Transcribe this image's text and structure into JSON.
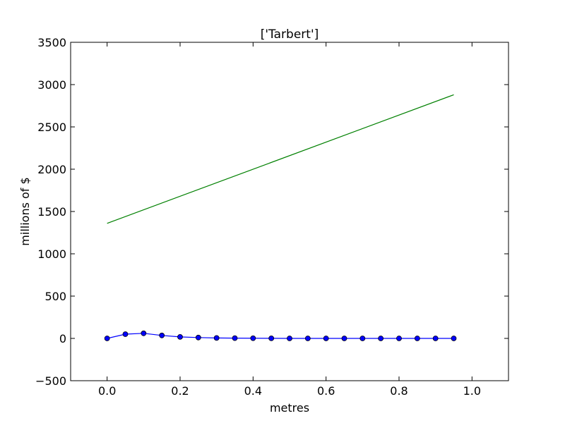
{
  "chart_data": {
    "type": "line",
    "title": "['Tarbert']",
    "xlabel": "metres",
    "ylabel": "millions of $",
    "xlim": [
      -0.1,
      1.1
    ],
    "ylim": [
      -500,
      3500
    ],
    "xticks": [
      0.0,
      0.2,
      0.4,
      0.6,
      0.8,
      1.0
    ],
    "xtick_labels": [
      "0.0",
      "0.2",
      "0.4",
      "0.6",
      "0.8",
      "1.0"
    ],
    "yticks": [
      -500,
      0,
      500,
      1000,
      1500,
      2000,
      2500,
      3000,
      3500
    ],
    "ytick_labels": [
      "−500",
      "0",
      "500",
      "1000",
      "1500",
      "2000",
      "2500",
      "3000",
      "3500"
    ],
    "grid": false,
    "series": [
      {
        "color": "#0000ff",
        "marker": "circle",
        "x": [
          0.0,
          0.05,
          0.1,
          0.15,
          0.2,
          0.25,
          0.3,
          0.35,
          0.4,
          0.45,
          0.5,
          0.55,
          0.6,
          0.65,
          0.7,
          0.75,
          0.8,
          0.85,
          0.9,
          0.95
        ],
        "y": [
          0,
          50,
          60,
          35,
          18,
          10,
          5,
          3,
          2,
          1,
          0,
          0,
          0,
          0,
          0,
          0,
          0,
          0,
          0,
          0
        ]
      },
      {
        "color": "#008000",
        "marker": "none",
        "x": [
          0.0,
          0.95
        ],
        "y": [
          1360,
          2880
        ]
      }
    ]
  }
}
